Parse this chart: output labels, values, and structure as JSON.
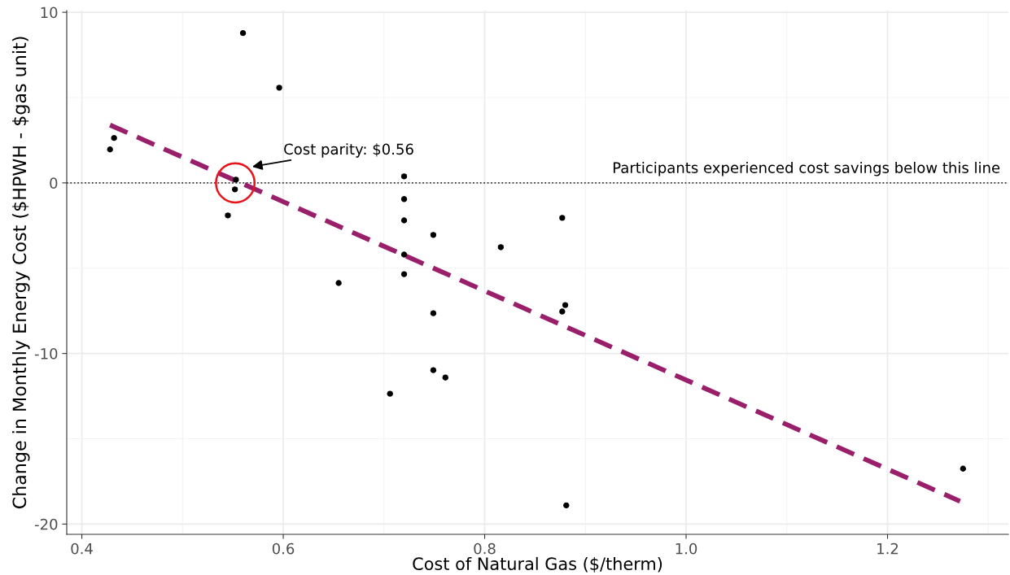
{
  "chart_data": {
    "type": "scatter",
    "xlabel": "Cost of Natural Gas ($/therm)",
    "ylabel": "Change in Monthly Energy Cost ($HPWH - $gas unit)",
    "xlim": [
      0.385,
      1.32
    ],
    "ylim": [
      -20.6,
      10.1
    ],
    "xticks": [
      0.4,
      0.6,
      0.8,
      {
        "value": 1.0,
        "label": "1.0"
      },
      1.2
    ],
    "yticks": [
      -20,
      -10,
      0,
      10
    ],
    "grid": true,
    "series": [
      {
        "marker": "circle",
        "color": "#000000",
        "x": [
          0.428,
          0.432,
          0.56,
          0.596,
          0.553,
          0.552,
          0.545,
          0.72,
          0.72,
          0.72,
          0.72,
          0.72,
          0.749,
          0.749,
          0.749,
          0.761,
          0.655,
          0.706,
          0.816,
          0.877,
          0.88,
          0.877,
          0.881,
          1.275
        ],
        "values": [
          1.96,
          2.63,
          8.78,
          5.58,
          0.19,
          -0.38,
          -1.91,
          0.38,
          -0.95,
          -2.2,
          -4.2,
          -5.35,
          -3.05,
          -7.64,
          -10.98,
          -11.41,
          -5.87,
          -12.36,
          -3.77,
          -2.05,
          -7.16,
          -7.54,
          -18.9,
          -16.75
        ]
      },
      {
        "type": "line",
        "color": "#991f6b",
        "line_style": "dashed",
        "x": [
          0.428,
          1.272
        ],
        "values": [
          3.39,
          -18.66
        ]
      }
    ],
    "ref_lines": [
      {
        "axis": "y",
        "value": 0,
        "label": "Participants experienced cost savings below this line",
        "color": "#333333",
        "line_style": "dotted"
      }
    ],
    "annotations": [
      "Cost parity: $0.56"
    ]
  }
}
